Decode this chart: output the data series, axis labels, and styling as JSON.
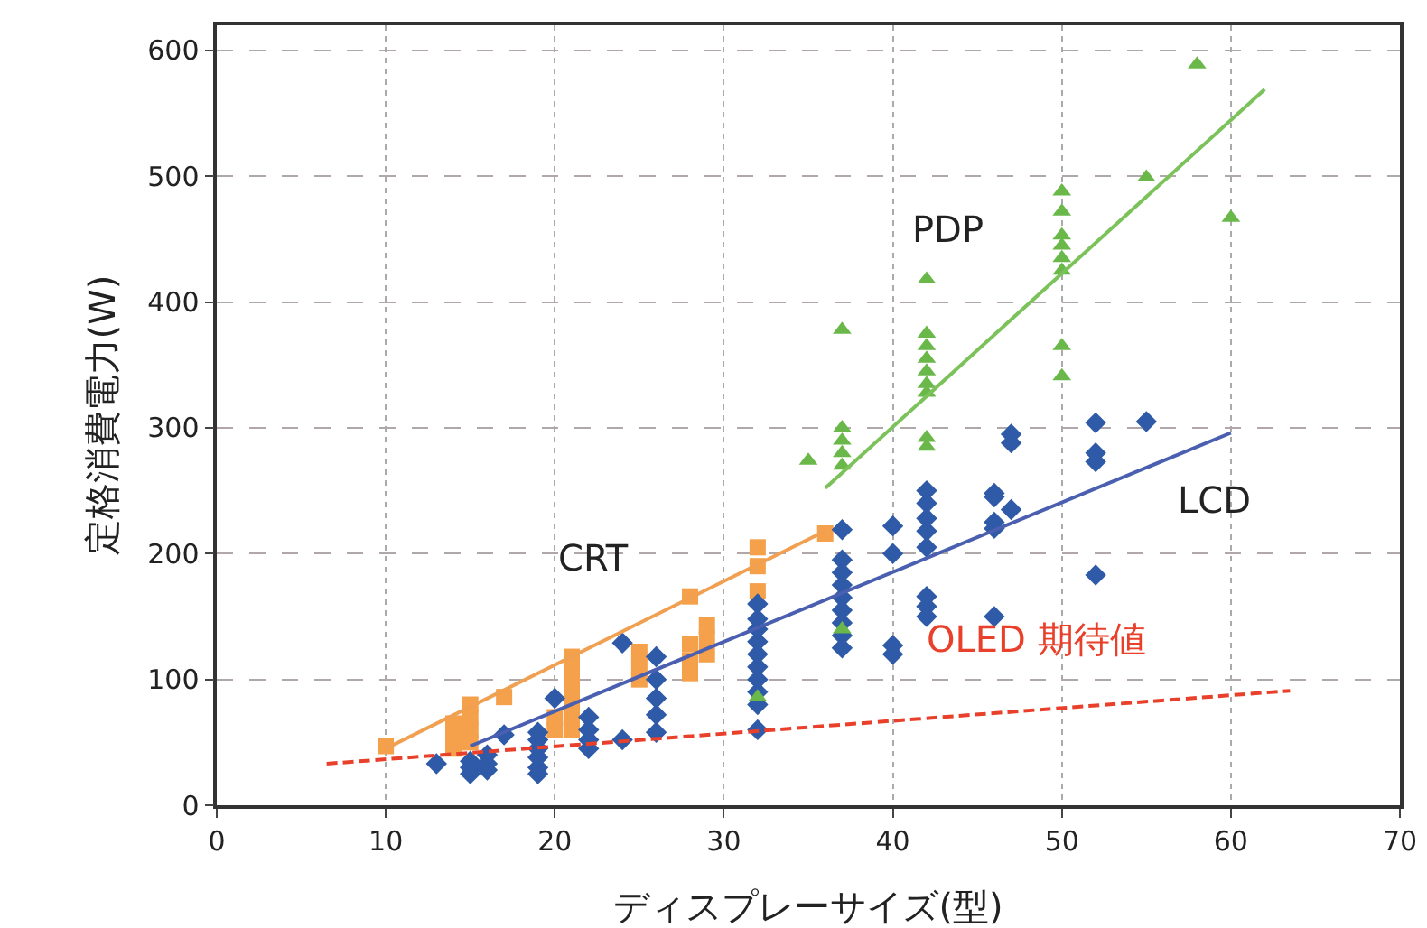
{
  "chart_data": {
    "type": "scatter",
    "xlabel": "ディスプレーサイズ(型)",
    "ylabel": "定格消費電力(W)",
    "xlim": [
      0,
      70
    ],
    "xticks": [
      0,
      10,
      20,
      30,
      40,
      50,
      60,
      70
    ],
    "ylim": [
      0,
      620
    ],
    "yticks": [
      0,
      100,
      200,
      300,
      400,
      500,
      600
    ],
    "grid": true,
    "legend": false,
    "series": [
      {
        "name": "CRT",
        "marker": "square",
        "color": "#f5a04a",
        "x": [
          10,
          14,
          14,
          14,
          15,
          15,
          15,
          15,
          17,
          20,
          20,
          21,
          21,
          21,
          21,
          21,
          21,
          21,
          25,
          25,
          25,
          28,
          28,
          28,
          28,
          29,
          29,
          29,
          32,
          32,
          32,
          36
        ],
        "values": [
          47,
          45,
          55,
          65,
          50,
          60,
          70,
          80,
          86,
          60,
          70,
          60,
          70,
          80,
          90,
          100,
          110,
          118,
          100,
          110,
          122,
          105,
          115,
          128,
          166,
          120,
          132,
          143,
          170,
          190,
          205,
          216
        ]
      },
      {
        "name": "LCD",
        "marker": "diamond",
        "color": "#2e5aa8",
        "x": [
          13,
          15,
          15,
          15,
          16,
          16,
          16,
          17,
          19,
          19,
          19,
          19,
          19,
          19,
          20,
          22,
          22,
          22,
          22,
          24,
          24,
          26,
          26,
          26,
          26,
          26,
          32,
          32,
          32,
          32,
          32,
          32,
          32,
          32,
          32,
          32,
          37,
          37,
          37,
          37,
          37,
          37,
          37,
          37,
          37,
          40,
          40,
          40,
          40,
          42,
          42,
          42,
          42,
          42,
          42,
          42,
          42,
          46,
          46,
          46,
          46,
          46,
          47,
          47,
          47,
          52,
          52,
          52,
          52,
          55
        ],
        "values": [
          33,
          25,
          30,
          35,
          28,
          33,
          40,
          56,
          25,
          30,
          38,
          45,
          52,
          58,
          85,
          45,
          52,
          60,
          70,
          52,
          129,
          58,
          72,
          85,
          100,
          118,
          60,
          80,
          90,
          100,
          110,
          120,
          130,
          140,
          148,
          160,
          219,
          195,
          185,
          175,
          165,
          155,
          145,
          135,
          125,
          222,
          200,
          127,
          120,
          250,
          240,
          228,
          218,
          205,
          166,
          158,
          150,
          248,
          245,
          225,
          220,
          150,
          295,
          288,
          235,
          304,
          280,
          273,
          183,
          305
        ]
      },
      {
        "name": "PDP",
        "marker": "triangle",
        "color": "#6ab84a",
        "x": [
          32,
          35,
          37,
          37,
          37,
          37,
          37,
          37,
          42,
          42,
          42,
          42,
          42,
          42,
          42,
          42,
          42,
          50,
          50,
          50,
          50,
          50,
          50,
          50,
          50,
          55,
          58,
          60
        ],
        "values": [
          86,
          274,
          378,
          300,
          290,
          280,
          270,
          140,
          418,
          375,
          365,
          355,
          345,
          335,
          328,
          292,
          285,
          488,
          472,
          453,
          445,
          435,
          425,
          365,
          341,
          499,
          589,
          467
        ]
      },
      {
        "type": "line",
        "marker": "none",
        "line_style": "solid",
        "color": "#f0a050",
        "x": [
          10,
          36
        ],
        "values": [
          45,
          218
        ]
      },
      {
        "type": "line",
        "marker": "none",
        "line_style": "solid",
        "color": "#4a5fb0",
        "x": [
          15,
          60
        ],
        "values": [
          47,
          296
        ]
      },
      {
        "type": "line",
        "marker": "none",
        "line_style": "solid",
        "color": "#7cc25a",
        "x": [
          36,
          62
        ],
        "values": [
          252,
          569
        ]
      },
      {
        "type": "line",
        "marker": "none",
        "line_style": "dashed",
        "name": "OLED 期待値",
        "color": "#e8402a",
        "x": [
          6.5,
          63.5
        ],
        "values": [
          33,
          91
        ]
      }
    ]
  }
}
